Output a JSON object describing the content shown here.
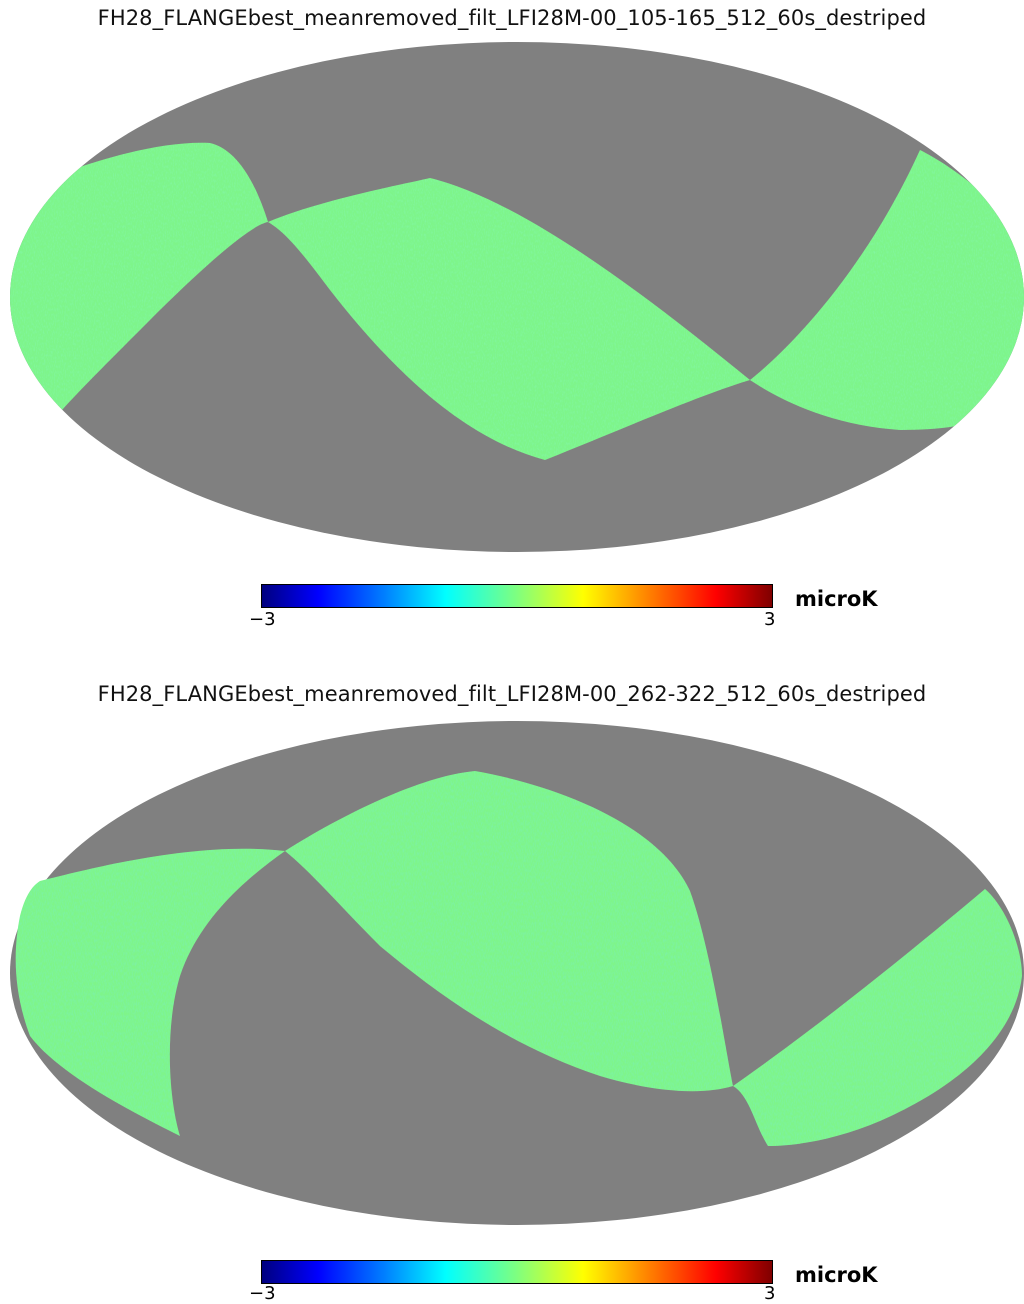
{
  "maps": [
    {
      "title": "FH28_FLANGEbest_meanremoved_filt_LFI28M-00_105-165_512_60s_destriped",
      "unit": "microK",
      "colorbar": {
        "min_label": "−3",
        "max_label": "3",
        "min": -3,
        "max": 3,
        "colormap": "jet"
      }
    },
    {
      "title": "FH28_FLANGEbest_meanremoved_filt_LFI28M-00_262-322_512_60s_destriped",
      "unit": "microK",
      "colorbar": {
        "min_label": "−3",
        "max_label": "3",
        "min": -3,
        "max": 3,
        "colormap": "jet"
      }
    }
  ],
  "colors": {
    "unobserved": "#808080",
    "signal_base": "#7ef58a",
    "background": "#ffffff"
  }
}
